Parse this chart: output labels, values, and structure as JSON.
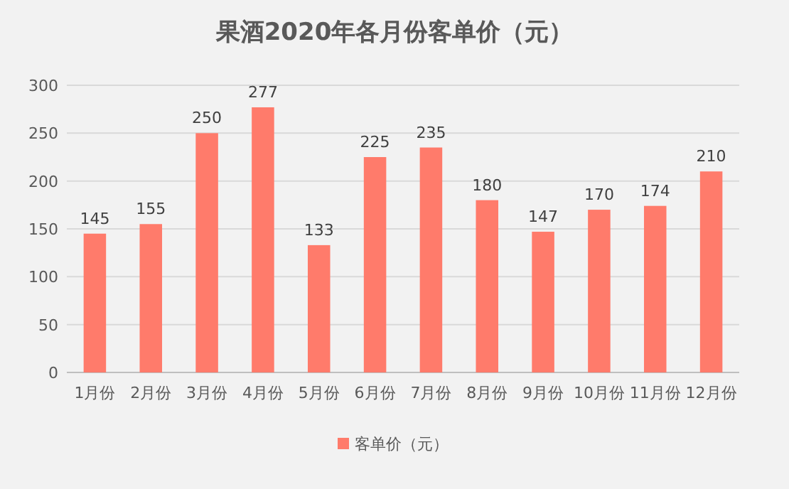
{
  "chart_data": {
    "type": "bar",
    "title": "果酒2020年各月份客单价（元）",
    "categories": [
      "1月份",
      "2月份",
      "3月份",
      "4月份",
      "5月份",
      "6月份",
      "7月份",
      "8月份",
      "9月份",
      "10月份",
      "11月份",
      "12月份"
    ],
    "series": [
      {
        "name": "客单价（元）",
        "color": "#ff7b6b",
        "values": [
          145,
          155,
          250,
          277,
          133,
          225,
          235,
          180,
          147,
          170,
          174,
          210
        ]
      }
    ],
    "ylim": [
      0,
      300
    ],
    "yticks": [
      0,
      50,
      100,
      150,
      200,
      250,
      300
    ],
    "grid": "y",
    "data_labels": true,
    "legend": "bottom"
  }
}
